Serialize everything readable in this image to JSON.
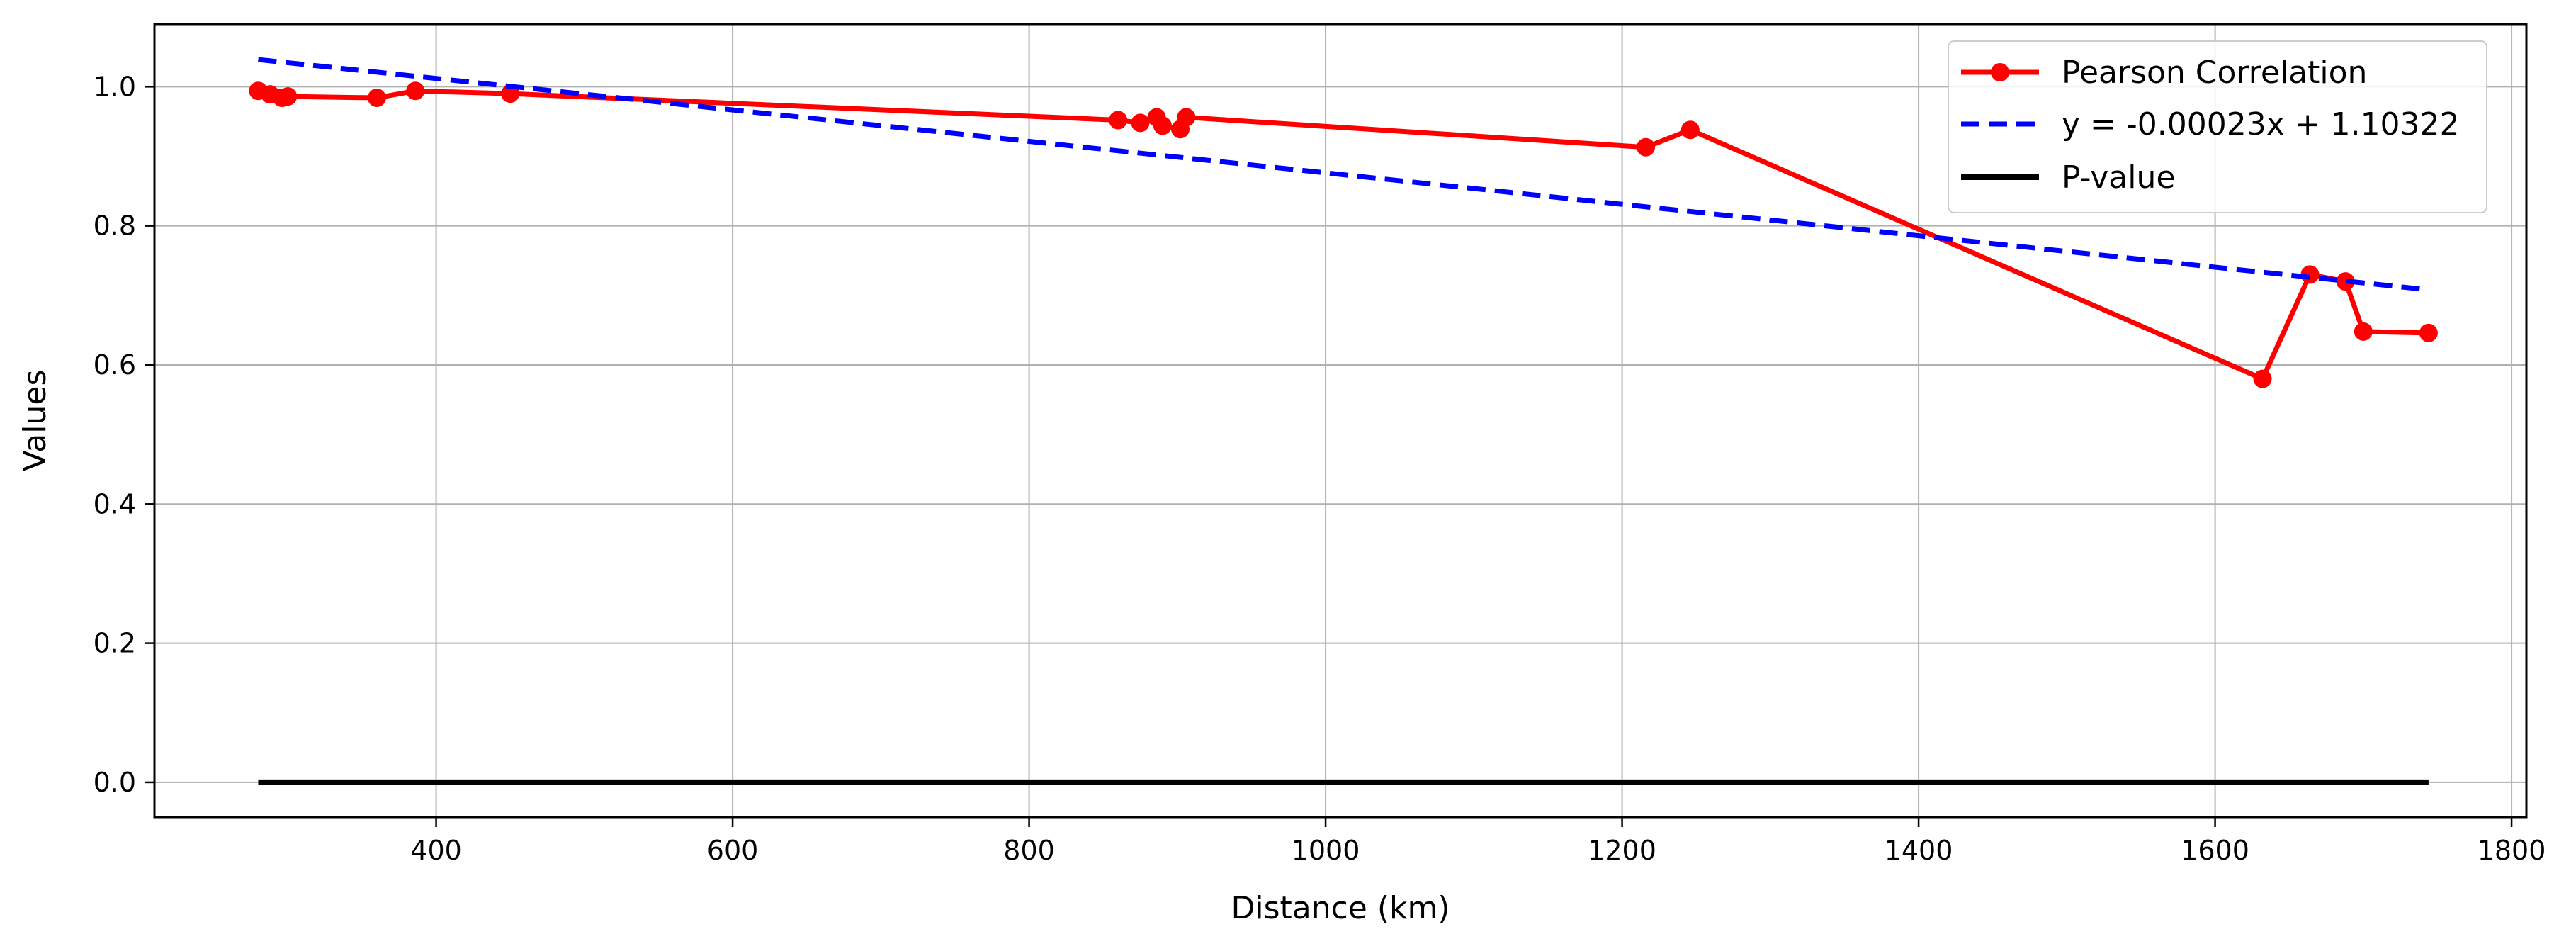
{
  "chart_data": {
    "type": "line",
    "title": "",
    "xlabel": "Distance (km)",
    "ylabel": "Values",
    "xlim": [
      210,
      1810
    ],
    "ylim": [
      -0.05,
      1.09
    ],
    "xticks": [
      400,
      600,
      800,
      1000,
      1200,
      1400,
      1600,
      1800
    ],
    "yticks": [
      0.0,
      0.2,
      0.4,
      0.6,
      0.8,
      1.0
    ],
    "xtick_labels": [
      "400",
      "600",
      "800",
      "1000",
      "1200",
      "1400",
      "1600",
      "1800"
    ],
    "ytick_labels": [
      "0.0",
      "0.2",
      "0.4",
      "0.6",
      "0.8",
      "1.0"
    ],
    "grid": true,
    "legend_position": "top-right",
    "series": [
      {
        "name": "Pearson Correlation",
        "style": "solid-marker",
        "color": "#ff0000",
        "x": [
          280,
          288,
          296,
          300,
          360,
          386,
          450,
          860,
          875,
          886,
          890,
          902,
          906,
          1216,
          1246,
          1632,
          1664,
          1688,
          1700,
          1744
        ],
        "y": [
          0.994,
          0.989,
          0.984,
          0.986,
          0.984,
          0.994,
          0.99,
          0.952,
          0.948,
          0.956,
          0.944,
          0.939,
          0.956,
          0.913,
          0.938,
          0.58,
          0.73,
          0.72,
          0.648,
          0.646
        ]
      },
      {
        "name": "y = -0.00023x + 1.10322",
        "style": "dashed",
        "color": "#0000ff",
        "x": [
          280,
          1744
        ],
        "y": [
          1.039,
          0.708
        ]
      },
      {
        "name": "P-value",
        "style": "solid",
        "color": "#000000",
        "x": [
          280,
          1744
        ],
        "y": [
          0.0,
          0.0
        ]
      }
    ]
  }
}
